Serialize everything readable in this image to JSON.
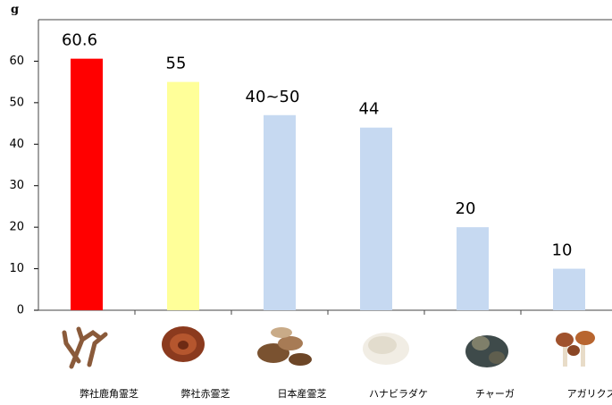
{
  "chart_data": {
    "type": "bar",
    "y_label": "g",
    "categories": [
      "弊社鹿角霊芝",
      "弊社赤霊芝",
      "日本産霊芝",
      "ハナビラダケ",
      "チャーガ",
      "アガリクス"
    ],
    "values": [
      60.6,
      55,
      47,
      44,
      20,
      10
    ],
    "value_labels": [
      "60.6",
      "55",
      "40~50",
      "44",
      "20",
      "10"
    ],
    "colors": [
      "#ff0000",
      "#ffff99",
      "#c6d9f1",
      "#c6d9f1",
      "#c6d9f1",
      "#c6d9f1"
    ],
    "ylim": [
      0,
      70
    ],
    "yticks": [
      0,
      10,
      20,
      30,
      40,
      50,
      60
    ]
  }
}
